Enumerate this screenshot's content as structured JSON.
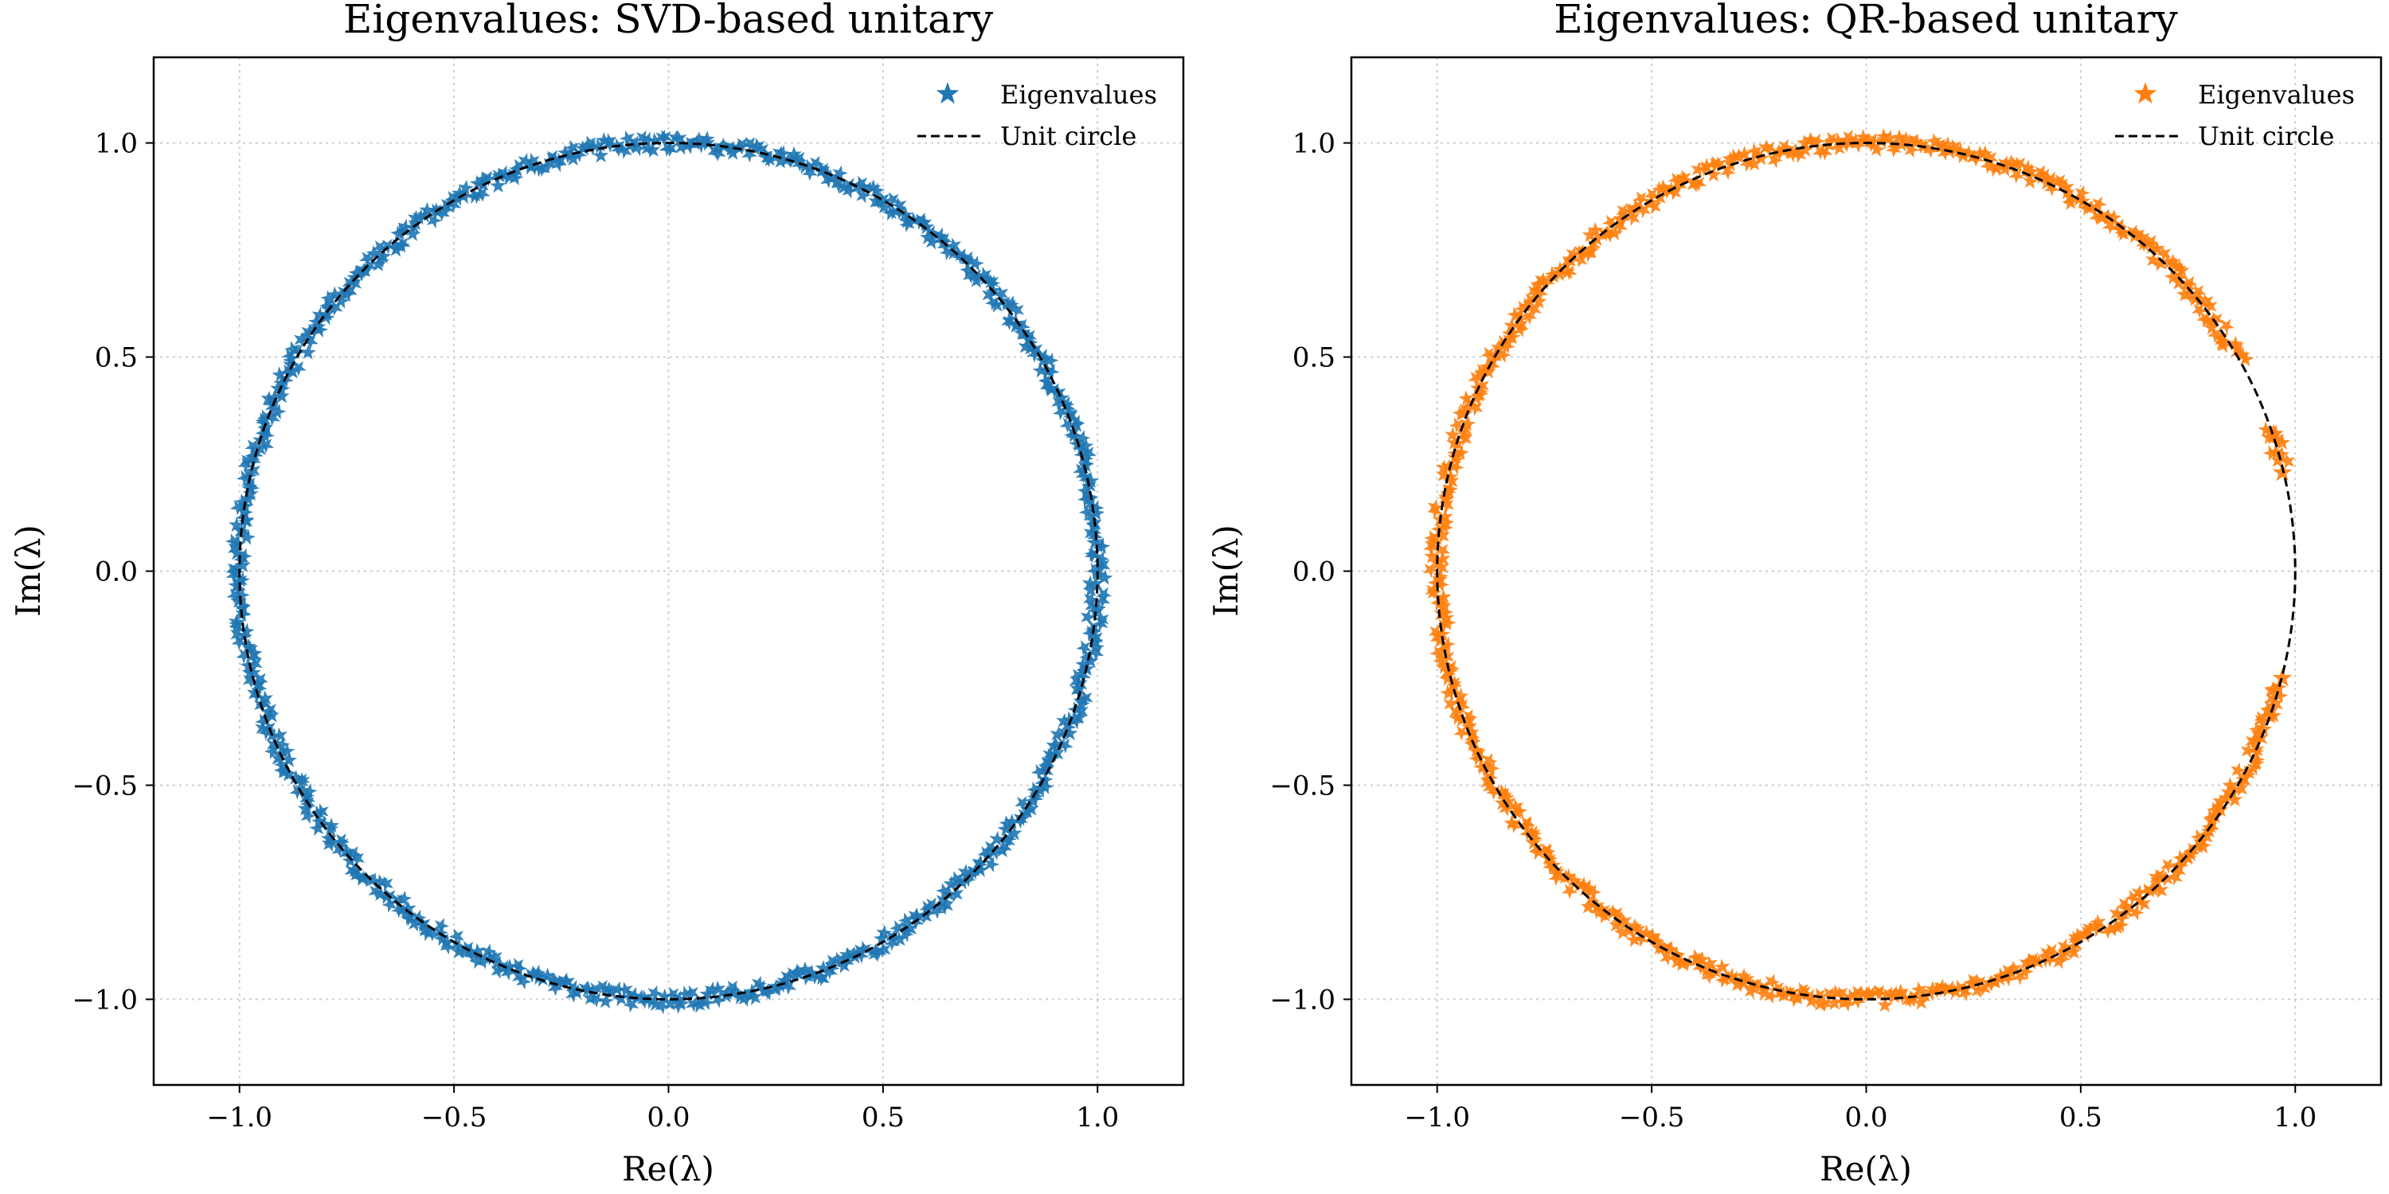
{
  "chart_data": [
    {
      "type": "scatter",
      "title": "Eigenvalues: SVD-based unitary",
      "xlabel": "Re(λ)",
      "ylabel": "Im(λ)",
      "xlim": [
        -1.2,
        1.2
      ],
      "ylim": [
        -1.2,
        1.2
      ],
      "xticks": [
        "−1.0",
        "−0.5",
        "0.0",
        "0.5",
        "1.0"
      ],
      "yticks": [
        "1.0",
        "0.5",
        "0.0",
        "−0.5",
        "−1.0"
      ],
      "grid": true,
      "legend_position": "top-right",
      "series": [
        {
          "name": "Eigenvalues",
          "kind": "star-markers",
          "color": "#1f77b4",
          "description_points": "eigenvalues distributed densely around the unit circle |λ| = 1, angles 0° to 360°",
          "radius": 1.0,
          "angle_range_deg": [
            0,
            360
          ],
          "gaps_deg": []
        },
        {
          "name": "Unit circle",
          "kind": "dashed-line",
          "color": "#000000",
          "radius": 1.0
        }
      ]
    },
    {
      "type": "scatter",
      "title": "Eigenvalues: QR-based unitary",
      "xlabel": "Re(λ)",
      "ylabel": "Im(λ)",
      "xlim": [
        -1.2,
        1.2
      ],
      "ylim": [
        -1.2,
        1.2
      ],
      "xticks": [
        "−1.0",
        "−0.5",
        "0.0",
        "0.5",
        "1.0"
      ],
      "yticks": [
        "1.0",
        "0.5",
        "0.0",
        "−0.5",
        "−1.0"
      ],
      "grid": true,
      "legend_position": "top-right",
      "series": [
        {
          "name": "Eigenvalues",
          "kind": "star-markers",
          "color": "#ff7f0e",
          "radius": 1.0,
          "angle_range_deg": [
            0,
            360
          ],
          "gaps_deg": [
            [
              -15,
              14
            ],
            [
              20,
              29
            ]
          ],
          "isolated_points": [
            [
              0.95,
              0.32
            ],
            [
              0.97,
              0.23
            ],
            [
              0.97,
              -0.25
            ]
          ]
        },
        {
          "name": "Unit circle",
          "kind": "dashed-line",
          "color": "#000000",
          "radius": 1.0
        }
      ]
    }
  ]
}
